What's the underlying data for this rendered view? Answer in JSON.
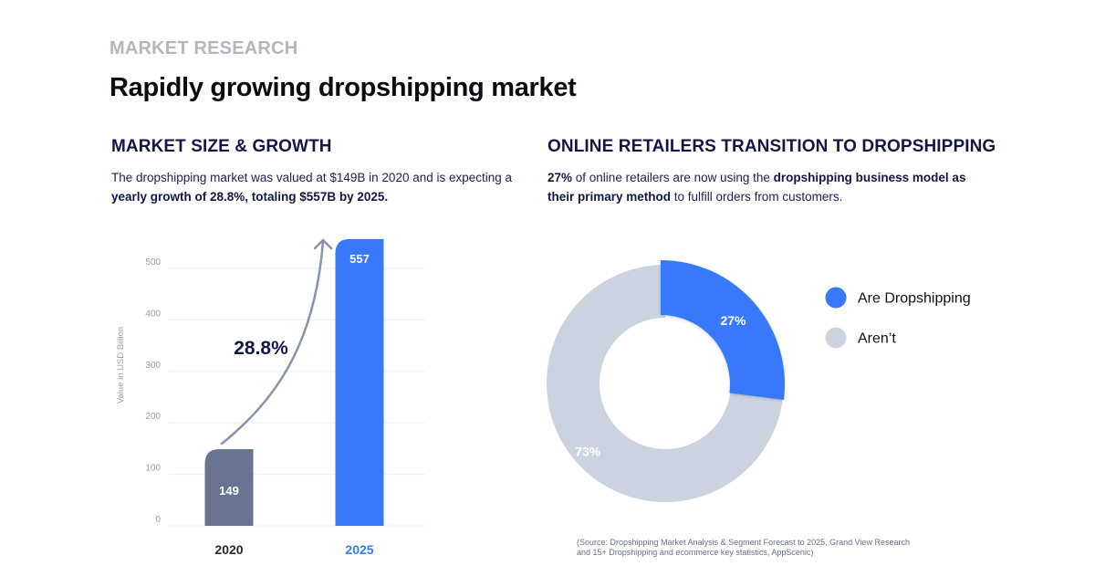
{
  "header": {
    "eyebrow": "MARKET RESEARCH",
    "title": "Rapidly growing dropshipping market"
  },
  "left_section": {
    "title": "MARKET SIZE & GROWTH",
    "description_parts": [
      {
        "text": "The dropshipping market was valued at $149B in 2020 and is expecting a ",
        "bold": false
      },
      {
        "text": "yearly growth of 28.8%, totaling $557B by 2025.",
        "bold": true
      }
    ]
  },
  "right_section": {
    "title": "ONLINE RETAILERS TRANSITION TO DROPSHIPPING",
    "description_parts": [
      {
        "text": "27%",
        "bold": true
      },
      {
        "text": " of online retailers are now using the ",
        "bold": false
      },
      {
        "text": "dropshipping business model as their primary method",
        "bold": true
      },
      {
        "text": " to fulfill orders from customers.",
        "bold": false
      }
    ]
  },
  "colors": {
    "accent_blue": "#3878fb",
    "slate_bar": "#697490",
    "light_gray": "#cbd3e0",
    "navy_text": "#121745",
    "arrow": "#8a94a9"
  },
  "chart_data": [
    {
      "type": "bar",
      "title": "MARKET SIZE & GROWTH",
      "xlabel": "",
      "ylabel": "Value in USD Billion",
      "categories": [
        "2020",
        "2025"
      ],
      "values": [
        149,
        557
      ],
      "data_labels": [
        "149",
        "557"
      ],
      "bar_colors": [
        "#697490",
        "#3878fb"
      ],
      "category_label_colors": [
        "#2a2a2a",
        "#3878fb"
      ],
      "ylim": [
        0,
        557
      ],
      "yticks": [
        0,
        100,
        200,
        300,
        400,
        500
      ],
      "grid": true,
      "annotation": {
        "text": "28.8%",
        "type": "growth-arrow",
        "from": "2020",
        "to": "2025"
      }
    },
    {
      "type": "pie",
      "variant": "donut",
      "title": "ONLINE RETAILERS TRANSITION TO DROPSHIPPING",
      "slices": [
        {
          "label": "Are Dropshipping",
          "value": 27,
          "display": "27%",
          "color": "#3878fb",
          "exploded": true
        },
        {
          "label": "Aren’t",
          "value": 73,
          "display": "73%",
          "color": "#cbd3e0",
          "exploded": false
        }
      ],
      "legend": "right"
    }
  ],
  "source": {
    "line1": "(Source: Dropshipping Market Analysis & Segment Forecast to 2025, Grand View Research",
    "line2": "and 15+ Dropshipping and ecommerce key statistics, AppScenic)"
  }
}
